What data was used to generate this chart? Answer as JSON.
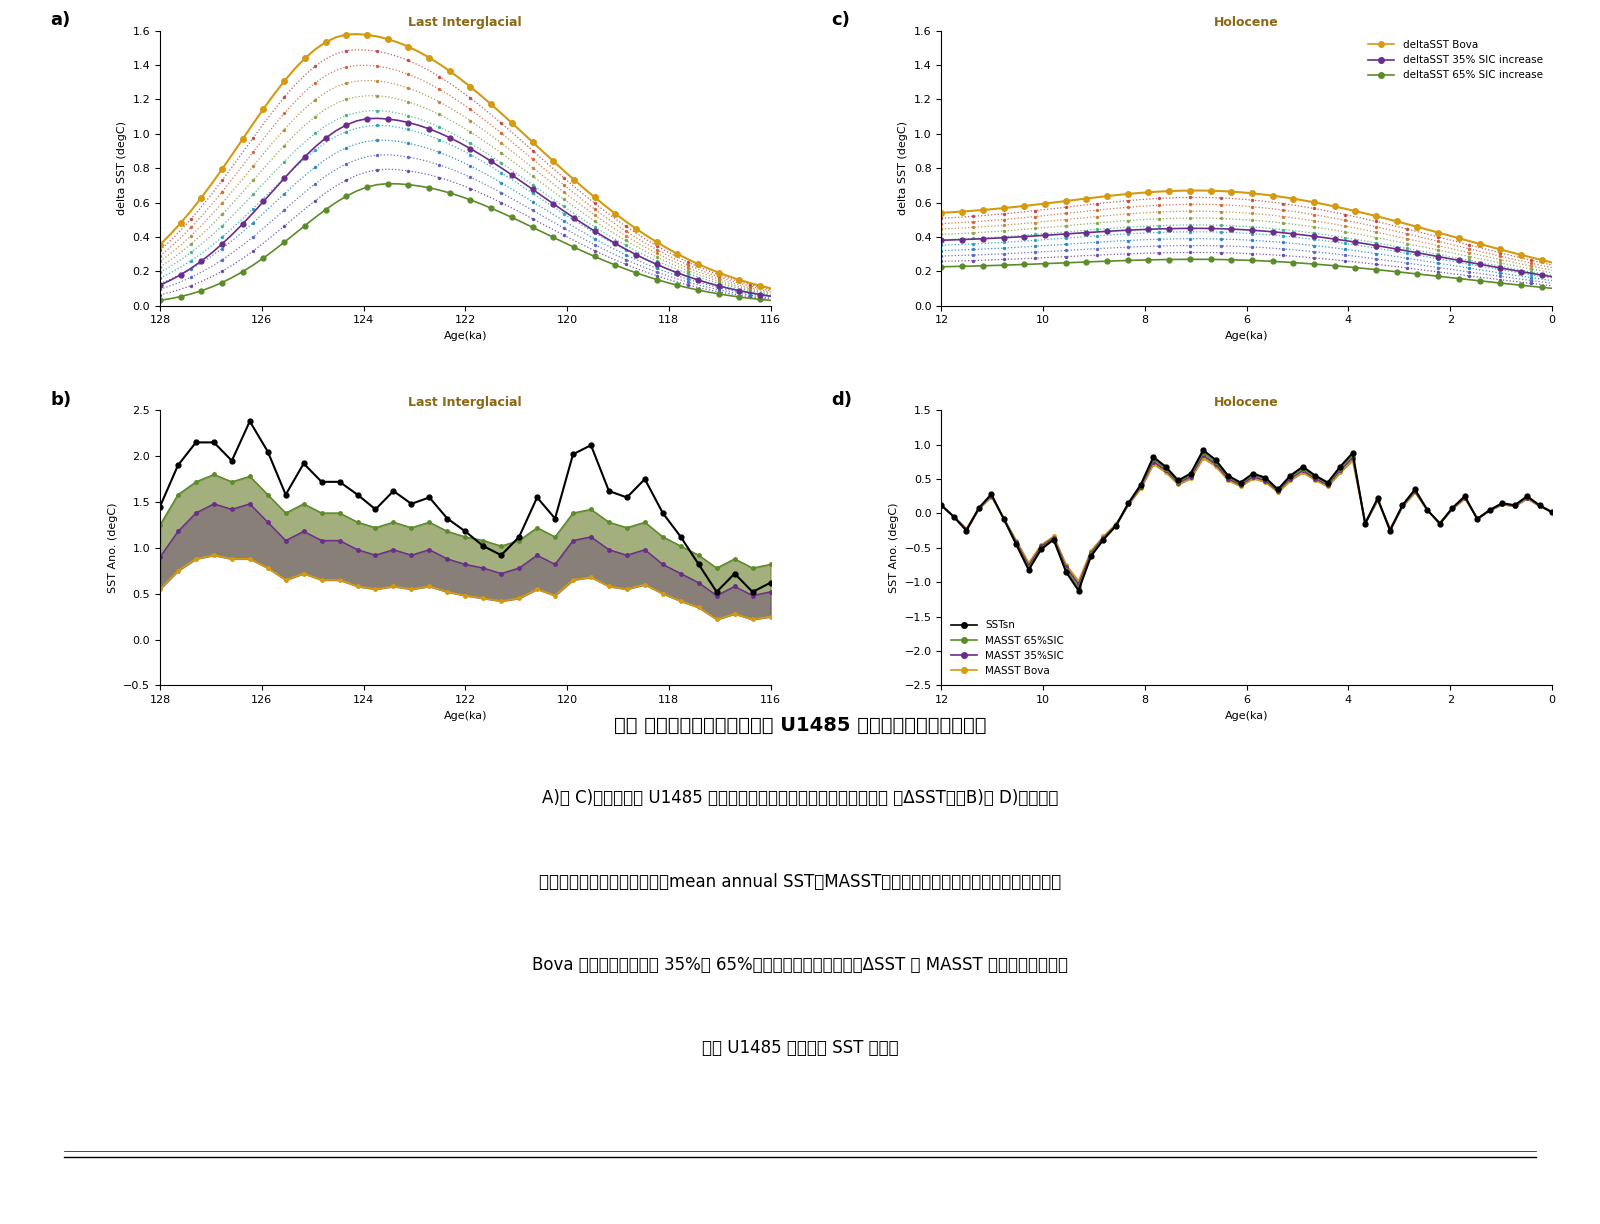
{
  "title_a": "Last Interglacial",
  "title_c": "Holocene",
  "title_b": "Last Interglacial",
  "title_d": "Holocene",
  "ylabel_ac": "delta SST (degC)",
  "ylabel_bd": "SST Ano. (degC)",
  "xlabel_ab": "Age(ka)",
  "xlabel_cd": "Age(ka)",
  "color_bova": "#D49A10",
  "color_35sic": "#6B2D8B",
  "color_65sic": "#5B8C2A",
  "color_black": "#000000",
  "legend_c": [
    "deltaSST Bova",
    "deltaSST 35% SIC increase",
    "deltaSST 65% SIC increase"
  ],
  "legend_d": [
    "SSTsn",
    "MASST 65%SIC",
    "MASST 35%SIC",
    "MASST Bova"
  ],
  "title_color": "#8B6914",
  "intermediate_colors": [
    "#6040A0",
    "#5060C0",
    "#2080C0",
    "#20A0C0",
    "#40B080",
    "#80A040",
    "#C08030",
    "#D06030",
    "#C04040"
  ],
  "background_color": "#ffffff"
}
